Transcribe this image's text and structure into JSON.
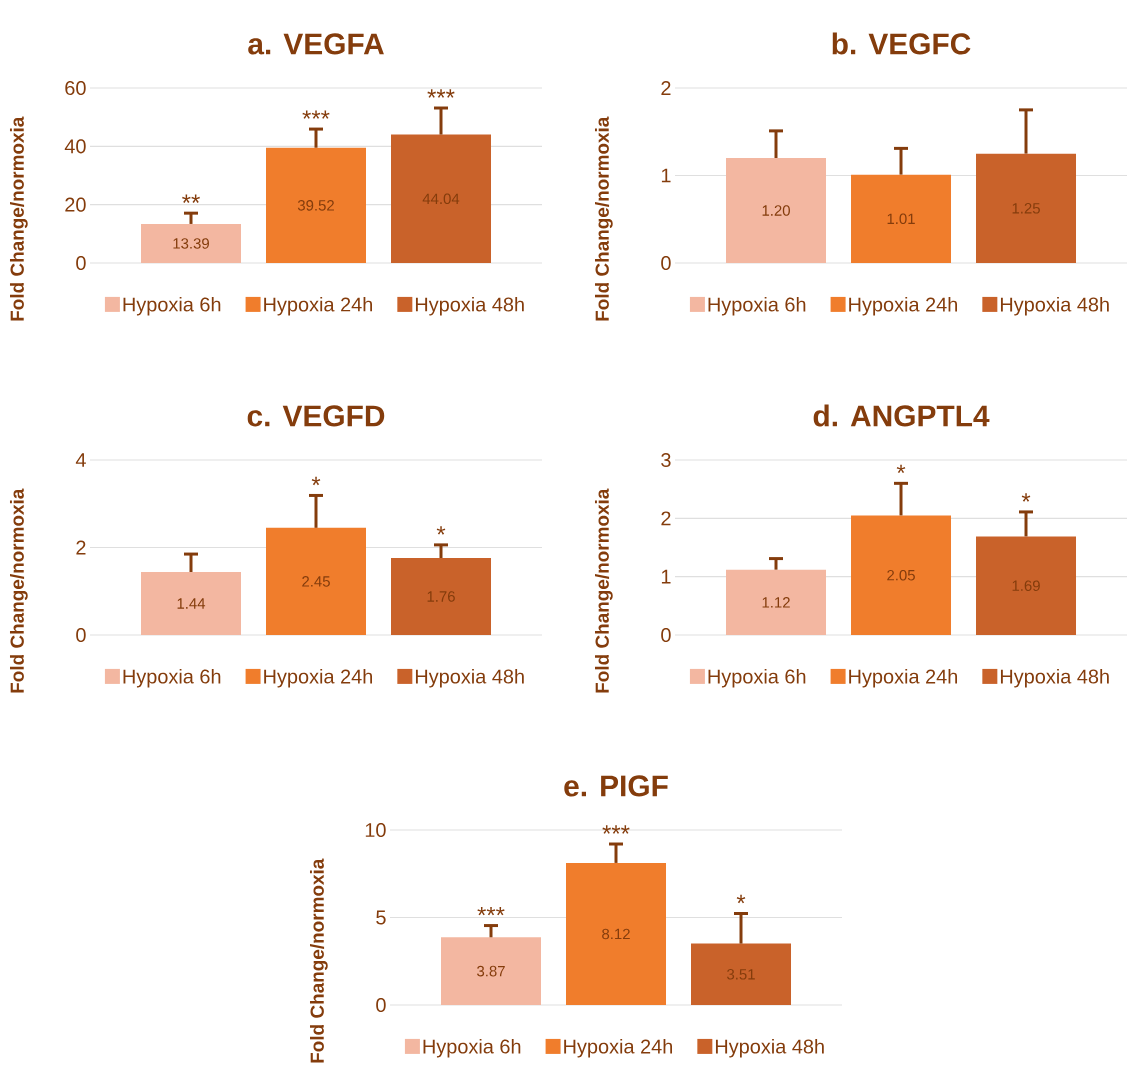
{
  "chart_data": [
    {
      "type": "bar",
      "title": "a. VEGFA",
      "ylabel": "Fold Change/normoxia",
      "categories": [
        null
      ],
      "ylim": [
        0,
        60
      ],
      "yticks": [
        0,
        20,
        40,
        60
      ],
      "grid": "y",
      "legend": "bottom",
      "series": [
        {
          "name": "Hypoxia 6h",
          "color": "#f3b7a1",
          "values": [
            13.39
          ],
          "errors": [
            3.7
          ],
          "value_labels": [
            "13.39"
          ]
        },
        {
          "name": "Hypoxia 24h",
          "color": "#f07d2c",
          "values": [
            39.52
          ],
          "errors": [
            6.4
          ],
          "value_labels": [
            "39.52"
          ]
        },
        {
          "name": "Hypoxia 48h",
          "color": "#c9622a",
          "values": [
            44.04
          ],
          "errors": [
            9.1
          ],
          "value_labels": [
            "44.04"
          ]
        }
      ],
      "annotations": [
        {
          "text": "**",
          "y": 13.39
        },
        {
          "text": "***",
          "y": 39.52
        },
        {
          "text": "***",
          "y": 44.04
        }
      ]
    },
    {
      "type": "bar",
      "title": "b. VEGFC",
      "ylabel": "Fold Change/normoxia",
      "categories": [
        null
      ],
      "ylim": [
        0,
        2
      ],
      "yticks": [
        0,
        1,
        2
      ],
      "grid": "y",
      "legend": "bottom",
      "series": [
        {
          "name": "Hypoxia 6h",
          "color": "#f3b7a1",
          "values": [
            1.2
          ],
          "errors": [
            0.31
          ],
          "value_labels": [
            "1.20"
          ]
        },
        {
          "name": "Hypoxia 24h",
          "color": "#f07d2c",
          "values": [
            1.01
          ],
          "errors": [
            0.3
          ],
          "value_labels": [
            "1.01"
          ]
        },
        {
          "name": "Hypoxia 48h",
          "color": "#c9622a",
          "values": [
            1.25
          ],
          "errors": [
            0.5
          ],
          "value_labels": [
            "1.25"
          ]
        }
      ]
    },
    {
      "type": "bar",
      "title": "c. VEGFD",
      "ylabel": "Fold Change/normoxia",
      "categories": [
        null
      ],
      "ylim": [
        0,
        4
      ],
      "yticks": [
        0,
        2,
        4
      ],
      "grid": "y",
      "legend": "bottom",
      "series": [
        {
          "name": "Hypoxia 6h",
          "color": "#f3b7a1",
          "values": [
            1.44
          ],
          "errors": [
            0.41
          ],
          "value_labels": [
            "1.44"
          ]
        },
        {
          "name": "Hypoxia 24h",
          "color": "#f07d2c",
          "values": [
            2.45
          ],
          "errors": [
            0.74
          ],
          "value_labels": [
            "2.45"
          ]
        },
        {
          "name": "Hypoxia 48h",
          "color": "#c9622a",
          "values": [
            1.76
          ],
          "errors": [
            0.3
          ],
          "value_labels": [
            "1.76"
          ]
        }
      ],
      "annotations": [
        {
          "text": "*",
          "y": 2.45
        },
        {
          "text": "*",
          "y": 1.76
        }
      ]
    },
    {
      "type": "bar",
      "title": "d. ANGPTL4",
      "ylabel": "Fold Change/normoxia",
      "categories": [
        null
      ],
      "ylim": [
        0,
        3
      ],
      "yticks": [
        0,
        1,
        2,
        3
      ],
      "grid": "y",
      "legend": "bottom",
      "series": [
        {
          "name": "Hypoxia 6h",
          "color": "#f3b7a1",
          "values": [
            1.12
          ],
          "errors": [
            0.19
          ],
          "value_labels": [
            "1.12"
          ]
        },
        {
          "name": "Hypoxia 24h",
          "color": "#f07d2c",
          "values": [
            2.05
          ],
          "errors": [
            0.55
          ],
          "value_labels": [
            "2.05"
          ]
        },
        {
          "name": "Hypoxia 48h",
          "color": "#c9622a",
          "values": [
            1.69
          ],
          "errors": [
            0.42
          ],
          "value_labels": [
            "1.69"
          ]
        }
      ],
      "annotations": [
        {
          "text": "*",
          "y": 2.05
        },
        {
          "text": "*",
          "y": 1.69
        }
      ]
    },
    {
      "type": "bar",
      "title": "e. PIGF",
      "ylabel": "Fold Change/normoxia",
      "categories": [
        null
      ],
      "ylim": [
        0,
        10
      ],
      "yticks": [
        0,
        5,
        10
      ],
      "grid": "y",
      "legend": "bottom",
      "series": [
        {
          "name": "Hypoxia 6h",
          "color": "#f3b7a1",
          "values": [
            3.87
          ],
          "errors": [
            0.67
          ],
          "value_labels": [
            "3.87"
          ]
        },
        {
          "name": "Hypoxia 24h",
          "color": "#f07d2c",
          "values": [
            8.12
          ],
          "errors": [
            1.08
          ],
          "value_labels": [
            "8.12"
          ]
        },
        {
          "name": "Hypoxia 48h",
          "color": "#c9622a",
          "values": [
            3.51
          ],
          "errors": [
            1.72
          ],
          "value_labels": [
            "3.51"
          ]
        }
      ],
      "annotations": [
        {
          "text": "***",
          "y": 3.87
        },
        {
          "text": "***",
          "y": 8.12
        },
        {
          "text": "*",
          "y": 3.51
        }
      ]
    }
  ]
}
